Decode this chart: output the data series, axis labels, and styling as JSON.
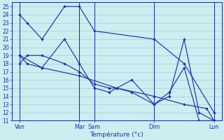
{
  "background_color": "#cceef0",
  "grid_color": "#aad4d8",
  "line_color": "#2030b0",
  "spine_color": "#2030b0",
  "ylim": [
    11,
    25.5
  ],
  "yticks": [
    11,
    12,
    13,
    14,
    15,
    16,
    17,
    18,
    19,
    20,
    21,
    22,
    23,
    24,
    25
  ],
  "ytick_fontsize": 5.5,
  "xtick_fontsize": 5.8,
  "xlabel": "Température (°c)",
  "xlabel_fontsize": 6.5,
  "xlim": [
    -0.5,
    13.5
  ],
  "xtick_positions": [
    0,
    4,
    5,
    9,
    13
  ],
  "xtick_labels": [
    "Ven",
    "Mar",
    "Sam",
    "Dim",
    "Lun"
  ],
  "vline_positions": [
    0,
    4,
    5,
    9,
    13
  ],
  "series": [
    {
      "x": [
        0,
        0.5,
        1.5,
        3,
        4,
        5,
        9,
        11,
        13
      ],
      "y": [
        24,
        23,
        21,
        25,
        25,
        22,
        21,
        18,
        12
      ]
    },
    {
      "x": [
        0,
        0.5,
        1.5,
        3,
        4,
        5,
        6,
        6.5,
        7.5,
        9,
        10,
        11,
        12,
        13
      ],
      "y": [
        19,
        18,
        17.5,
        21,
        18,
        15,
        14.5,
        15,
        16,
        13,
        14,
        21,
        12,
        11
      ]
    },
    {
      "x": [
        0,
        0.5,
        1.5,
        3,
        4,
        5,
        6,
        6.5,
        7.5,
        9,
        10,
        11,
        12,
        13
      ],
      "y": [
        18,
        19,
        19,
        18,
        17,
        15.5,
        15,
        15,
        14.5,
        13,
        14.5,
        17.5,
        11,
        11
      ]
    },
    {
      "x": [
        0,
        1.5,
        4,
        6.5,
        9,
        11,
        12.5,
        13
      ],
      "y": [
        19,
        17.5,
        16.5,
        15,
        14,
        13,
        12.5,
        11
      ]
    }
  ]
}
